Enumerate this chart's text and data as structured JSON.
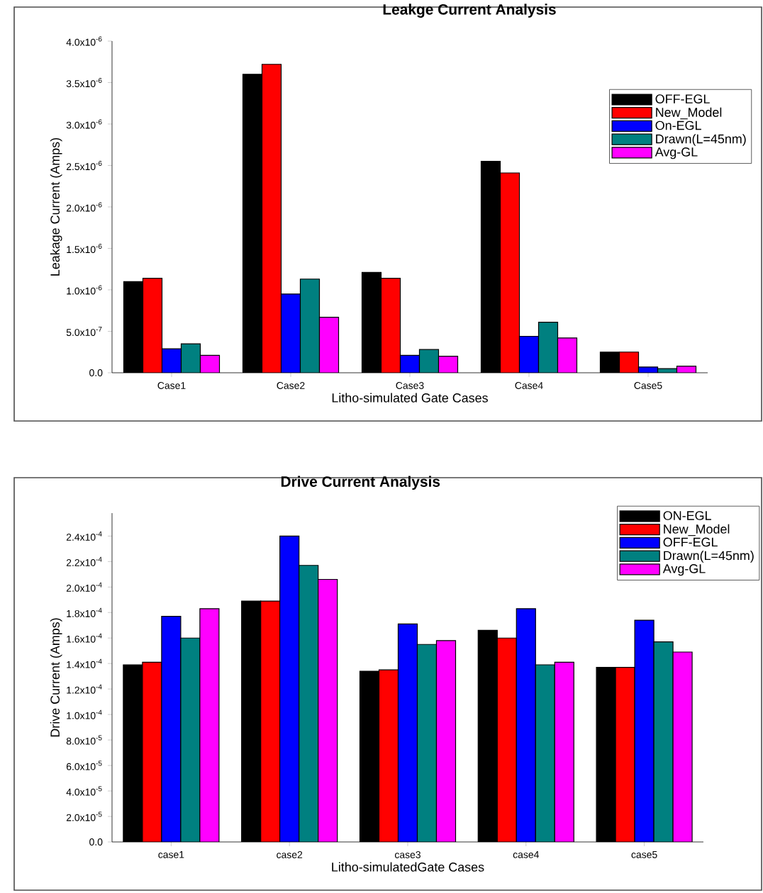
{
  "chart_data": [
    {
      "type": "bar",
      "title": "Leakge Current Analysis",
      "xlabel": "Litho-simulated Gate Cases",
      "ylabel": "Leakage Current (Amps)",
      "categories": [
        "Case1",
        "Case2",
        "Case3",
        "Case4",
        "Case5"
      ],
      "series": [
        {
          "name": "OFF-EGL",
          "color": "#000000",
          "values": [
            1.1e-06,
            3.6e-06,
            1.21e-06,
            2.55e-06,
            2.5e-07
          ]
        },
        {
          "name": "New_Model",
          "color": "#ff0000",
          "values": [
            1.14e-06,
            3.72e-06,
            1.14e-06,
            2.41e-06,
            2.5e-07
          ]
        },
        {
          "name": "On-EGL",
          "color": "#0000ff",
          "values": [
            2.9e-07,
            9.5e-07,
            2.1e-07,
            4.4e-07,
            7e-08
          ]
        },
        {
          "name": "Drawn(L=45nm)",
          "color": "#008080",
          "values": [
            3.5e-07,
            1.13e-06,
            2.8e-07,
            6.1e-07,
            5e-08
          ]
        },
        {
          "name": "Avg-GL",
          "color": "#ff00ff",
          "values": [
            2.1e-07,
            6.7e-07,
            2e-07,
            4.2e-07,
            8e-08
          ]
        }
      ],
      "ylim": [
        0,
        4e-06
      ],
      "yticks": [
        {
          "value": 0,
          "label": "0.0"
        },
        {
          "value": 5e-07,
          "label": "5.0x10$^{-7}$"
        },
        {
          "value": 1e-06,
          "label": "1.0x10$^{-6}$"
        },
        {
          "value": 1.5e-06,
          "label": "1.5x10$^{-6}$"
        },
        {
          "value": 2e-06,
          "label": "2.0x10$^{-6}$"
        },
        {
          "value": 2.5e-06,
          "label": "2.5x10$^{-6}$"
        },
        {
          "value": 3e-06,
          "label": "3.0x10$^{-6}$"
        },
        {
          "value": 3.5e-06,
          "label": "3.5x10$^{-6}$"
        },
        {
          "value": 4e-06,
          "label": "4.0x10$^{-6}$"
        }
      ],
      "legend": "top right"
    },
    {
      "type": "bar",
      "title": "Drive Current Analysis",
      "xlabel": "Litho-simulatedGate Cases",
      "ylabel": "Drive Current (Amps)",
      "categories": [
        "case1",
        "case2",
        "case3",
        "case4",
        "case5"
      ],
      "series": [
        {
          "name": "ON-EGL",
          "color": "#000000",
          "values": [
            0.000139,
            0.000189,
            0.000134,
            0.000166,
            0.000137
          ]
        },
        {
          "name": "New_Model",
          "color": "#ff0000",
          "values": [
            0.000141,
            0.000189,
            0.000135,
            0.00016,
            0.000137
          ]
        },
        {
          "name": "OFF-EGL",
          "color": "#0000ff",
          "values": [
            0.000177,
            0.00024,
            0.000171,
            0.000183,
            0.000174
          ]
        },
        {
          "name": "Drawn(L=45nm)",
          "color": "#008080",
          "values": [
            0.00016,
            0.000217,
            0.000155,
            0.000139,
            0.000157
          ]
        },
        {
          "name": "Avg-GL",
          "color": "#ff00ff",
          "values": [
            0.000183,
            0.000206,
            0.000158,
            0.000141,
            0.000149
          ]
        }
      ],
      "ylim": [
        0,
        0.000258
      ],
      "yticks": [
        {
          "value": 0,
          "label": "0.0"
        },
        {
          "value": 2e-05,
          "label": "2.0x10$^{-5}$"
        },
        {
          "value": 4e-05,
          "label": "4.0x10$^{-5}$"
        },
        {
          "value": 6e-05,
          "label": "6.0x10$^{-5}$"
        },
        {
          "value": 8e-05,
          "label": "8.0x10$^{-5}$"
        },
        {
          "value": 0.0001,
          "label": "1.0x10$^{-4}$"
        },
        {
          "value": 0.00012,
          "label": "1.2x10$^{-4}$"
        },
        {
          "value": 0.00014,
          "label": "1.4x10$^{-4}$"
        },
        {
          "value": 0.00016,
          "label": "1.6x10$^{-4}$"
        },
        {
          "value": 0.00018,
          "label": "1.8x10$^{-4}$"
        },
        {
          "value": 0.0002,
          "label": "2.0x10$^{-4}$"
        },
        {
          "value": 0.00022,
          "label": "2.2x10$^{-4}$"
        },
        {
          "value": 0.00024,
          "label": "2.4x10$^{-4}$"
        }
      ],
      "legend": "top right"
    }
  ]
}
